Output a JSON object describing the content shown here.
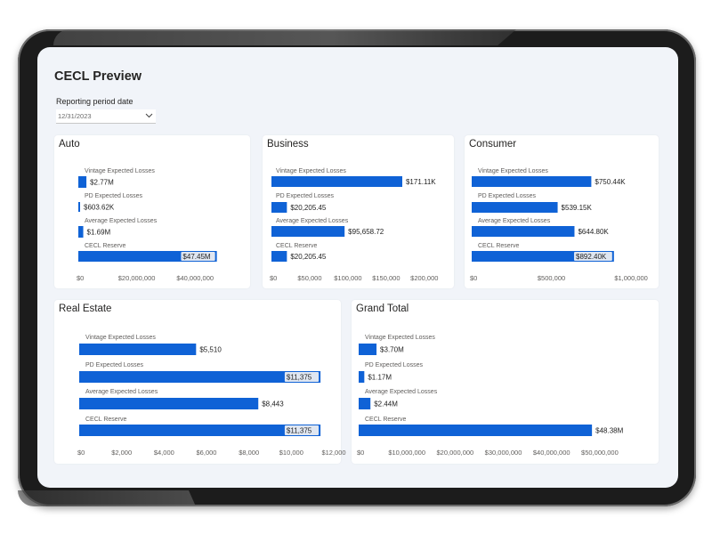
{
  "page": {
    "title": "CECL Preview",
    "period_label": "Reporting period date",
    "period_value": "12/31/2023"
  },
  "colors": {
    "bar": "#0f62d6",
    "highlight": "#dfe6f1",
    "text": "#252423",
    "muted": "#605e5c"
  },
  "chart_data": [
    {
      "type": "bar",
      "title": "Auto",
      "categories": [
        "Vintage Expected Losses",
        "PD Expected Losses",
        "Average Expected Losses",
        "CECL Reserve"
      ],
      "values": [
        2770000,
        603620,
        1690000,
        47450000
      ],
      "data_labels": [
        "$2.77M",
        "$603.62K",
        "$1.69M",
        "$47.45M"
      ],
      "highlighted": [
        false,
        false,
        false,
        true
      ],
      "xlim": [
        0,
        50000000
      ],
      "ticks": [
        0,
        20000000,
        40000000
      ],
      "tick_labels": [
        "$0",
        "$20,000,000",
        "$40,000,000"
      ]
    },
    {
      "type": "bar",
      "title": "Business",
      "categories": [
        "Vintage Expected Losses",
        "PD Expected Losses",
        "Average Expected Losses",
        "CECL Reserve"
      ],
      "values": [
        171110,
        20205.45,
        95658.72,
        20205.45
      ],
      "data_labels": [
        "$171.11K",
        "$20,205.45",
        "$95,658.72",
        "$20,205.45"
      ],
      "highlighted": [
        false,
        false,
        false,
        false
      ],
      "xlim": [
        0,
        220000
      ],
      "ticks": [
        0,
        50000,
        100000,
        150000,
        200000
      ],
      "tick_labels": [
        "$0",
        "$50,000",
        "$100,000",
        "$150,000",
        "$200,000"
      ]
    },
    {
      "type": "bar",
      "title": "Consumer",
      "categories": [
        "Vintage Expected Losses",
        "PD Expected Losses",
        "Average Expected Losses",
        "CECL Reserve"
      ],
      "values": [
        750440,
        539150,
        644800,
        892400
      ],
      "data_labels": [
        "$750.44K",
        "$539.15K",
        "$644.80K",
        "$892.40K"
      ],
      "highlighted": [
        false,
        false,
        false,
        true
      ],
      "xlim": [
        0,
        1100000
      ],
      "ticks": [
        0,
        500000,
        1000000
      ],
      "tick_labels": [
        "$0",
        "$500,000",
        "$1,000,000"
      ]
    },
    {
      "type": "bar",
      "title": "Real Estate",
      "categories": [
        "Vintage Expected Losses",
        "PD Expected Losses",
        "Average Expected Losses",
        "CECL Reserve"
      ],
      "values": [
        5510,
        11375,
        8443,
        11375
      ],
      "data_labels": [
        "$5,510",
        "$11,375",
        "$8,443",
        "$11,375"
      ],
      "highlighted": [
        false,
        true,
        false,
        true
      ],
      "xlim": [
        0,
        12000
      ],
      "ticks": [
        0,
        2000,
        4000,
        6000,
        8000,
        10000,
        12000
      ],
      "tick_labels": [
        "$0",
        "$2,000",
        "$4,000",
        "$6,000",
        "$8,000",
        "$10,000",
        "$12,000"
      ]
    },
    {
      "type": "bar",
      "title": "Grand Total",
      "categories": [
        "Vintage Expected Losses",
        "PD Expected Losses",
        "Average Expected Losses",
        "CECL Reserve"
      ],
      "values": [
        3700000,
        1170000,
        2440000,
        48380000
      ],
      "data_labels": [
        "$3.70M",
        "$1.17M",
        "$2.44M",
        "$48.38M"
      ],
      "highlighted": [
        false,
        false,
        false,
        false
      ],
      "xlim": [
        0,
        55000000
      ],
      "ticks": [
        0,
        10000000,
        20000000,
        30000000,
        40000000,
        50000000
      ],
      "tick_labels": [
        "$0",
        "$10,000,000",
        "$20,000,000",
        "$30,000,000",
        "$40,000,000",
        "$50,000,000"
      ]
    }
  ]
}
